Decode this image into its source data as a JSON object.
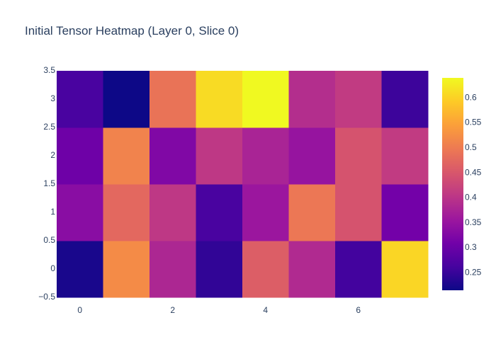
{
  "chart_data": {
    "type": "heatmap",
    "title": "Initial Tensor Heatmap (Layer 0, Slice 0)",
    "xlabel": "",
    "ylabel": "",
    "x": [
      0,
      1,
      2,
      3,
      4,
      5,
      6,
      7
    ],
    "y": [
      0,
      1,
      2,
      3
    ],
    "xlim": [
      -0.5,
      7.5
    ],
    "ylim": [
      -0.5,
      3.5
    ],
    "x_tick_labels": [
      "0",
      "2",
      "4",
      "6"
    ],
    "x_tick_values": [
      0,
      2,
      4,
      6
    ],
    "y_tick_labels": [
      "−0.5",
      "0",
      "0.5",
      "1",
      "1.5",
      "2",
      "2.5",
      "3",
      "3.5"
    ],
    "y_tick_values": [
      -0.5,
      0,
      0.5,
      1,
      1.5,
      2,
      2.5,
      3,
      3.5
    ],
    "z": [
      [
        0.225,
        0.52,
        0.38,
        0.245,
        0.46,
        0.385,
        0.26,
        0.605
      ],
      [
        0.335,
        0.475,
        0.405,
        0.265,
        0.355,
        0.495,
        0.445,
        0.31
      ],
      [
        0.305,
        0.51,
        0.325,
        0.405,
        0.375,
        0.35,
        0.445,
        0.41
      ],
      [
        0.265,
        0.215,
        0.49,
        0.61,
        0.64,
        0.39,
        0.41,
        0.255
      ]
    ],
    "colorscale": "plasma",
    "colorbar": {
      "range": [
        0.215,
        0.64
      ],
      "tick_values": [
        0.25,
        0.3,
        0.35,
        0.4,
        0.45,
        0.5,
        0.55,
        0.6
      ],
      "tick_labels": [
        "0.25",
        "0.3",
        "0.35",
        "0.4",
        "0.45",
        "0.5",
        "0.55",
        "0.6"
      ]
    },
    "grid": false,
    "legend": "none"
  }
}
